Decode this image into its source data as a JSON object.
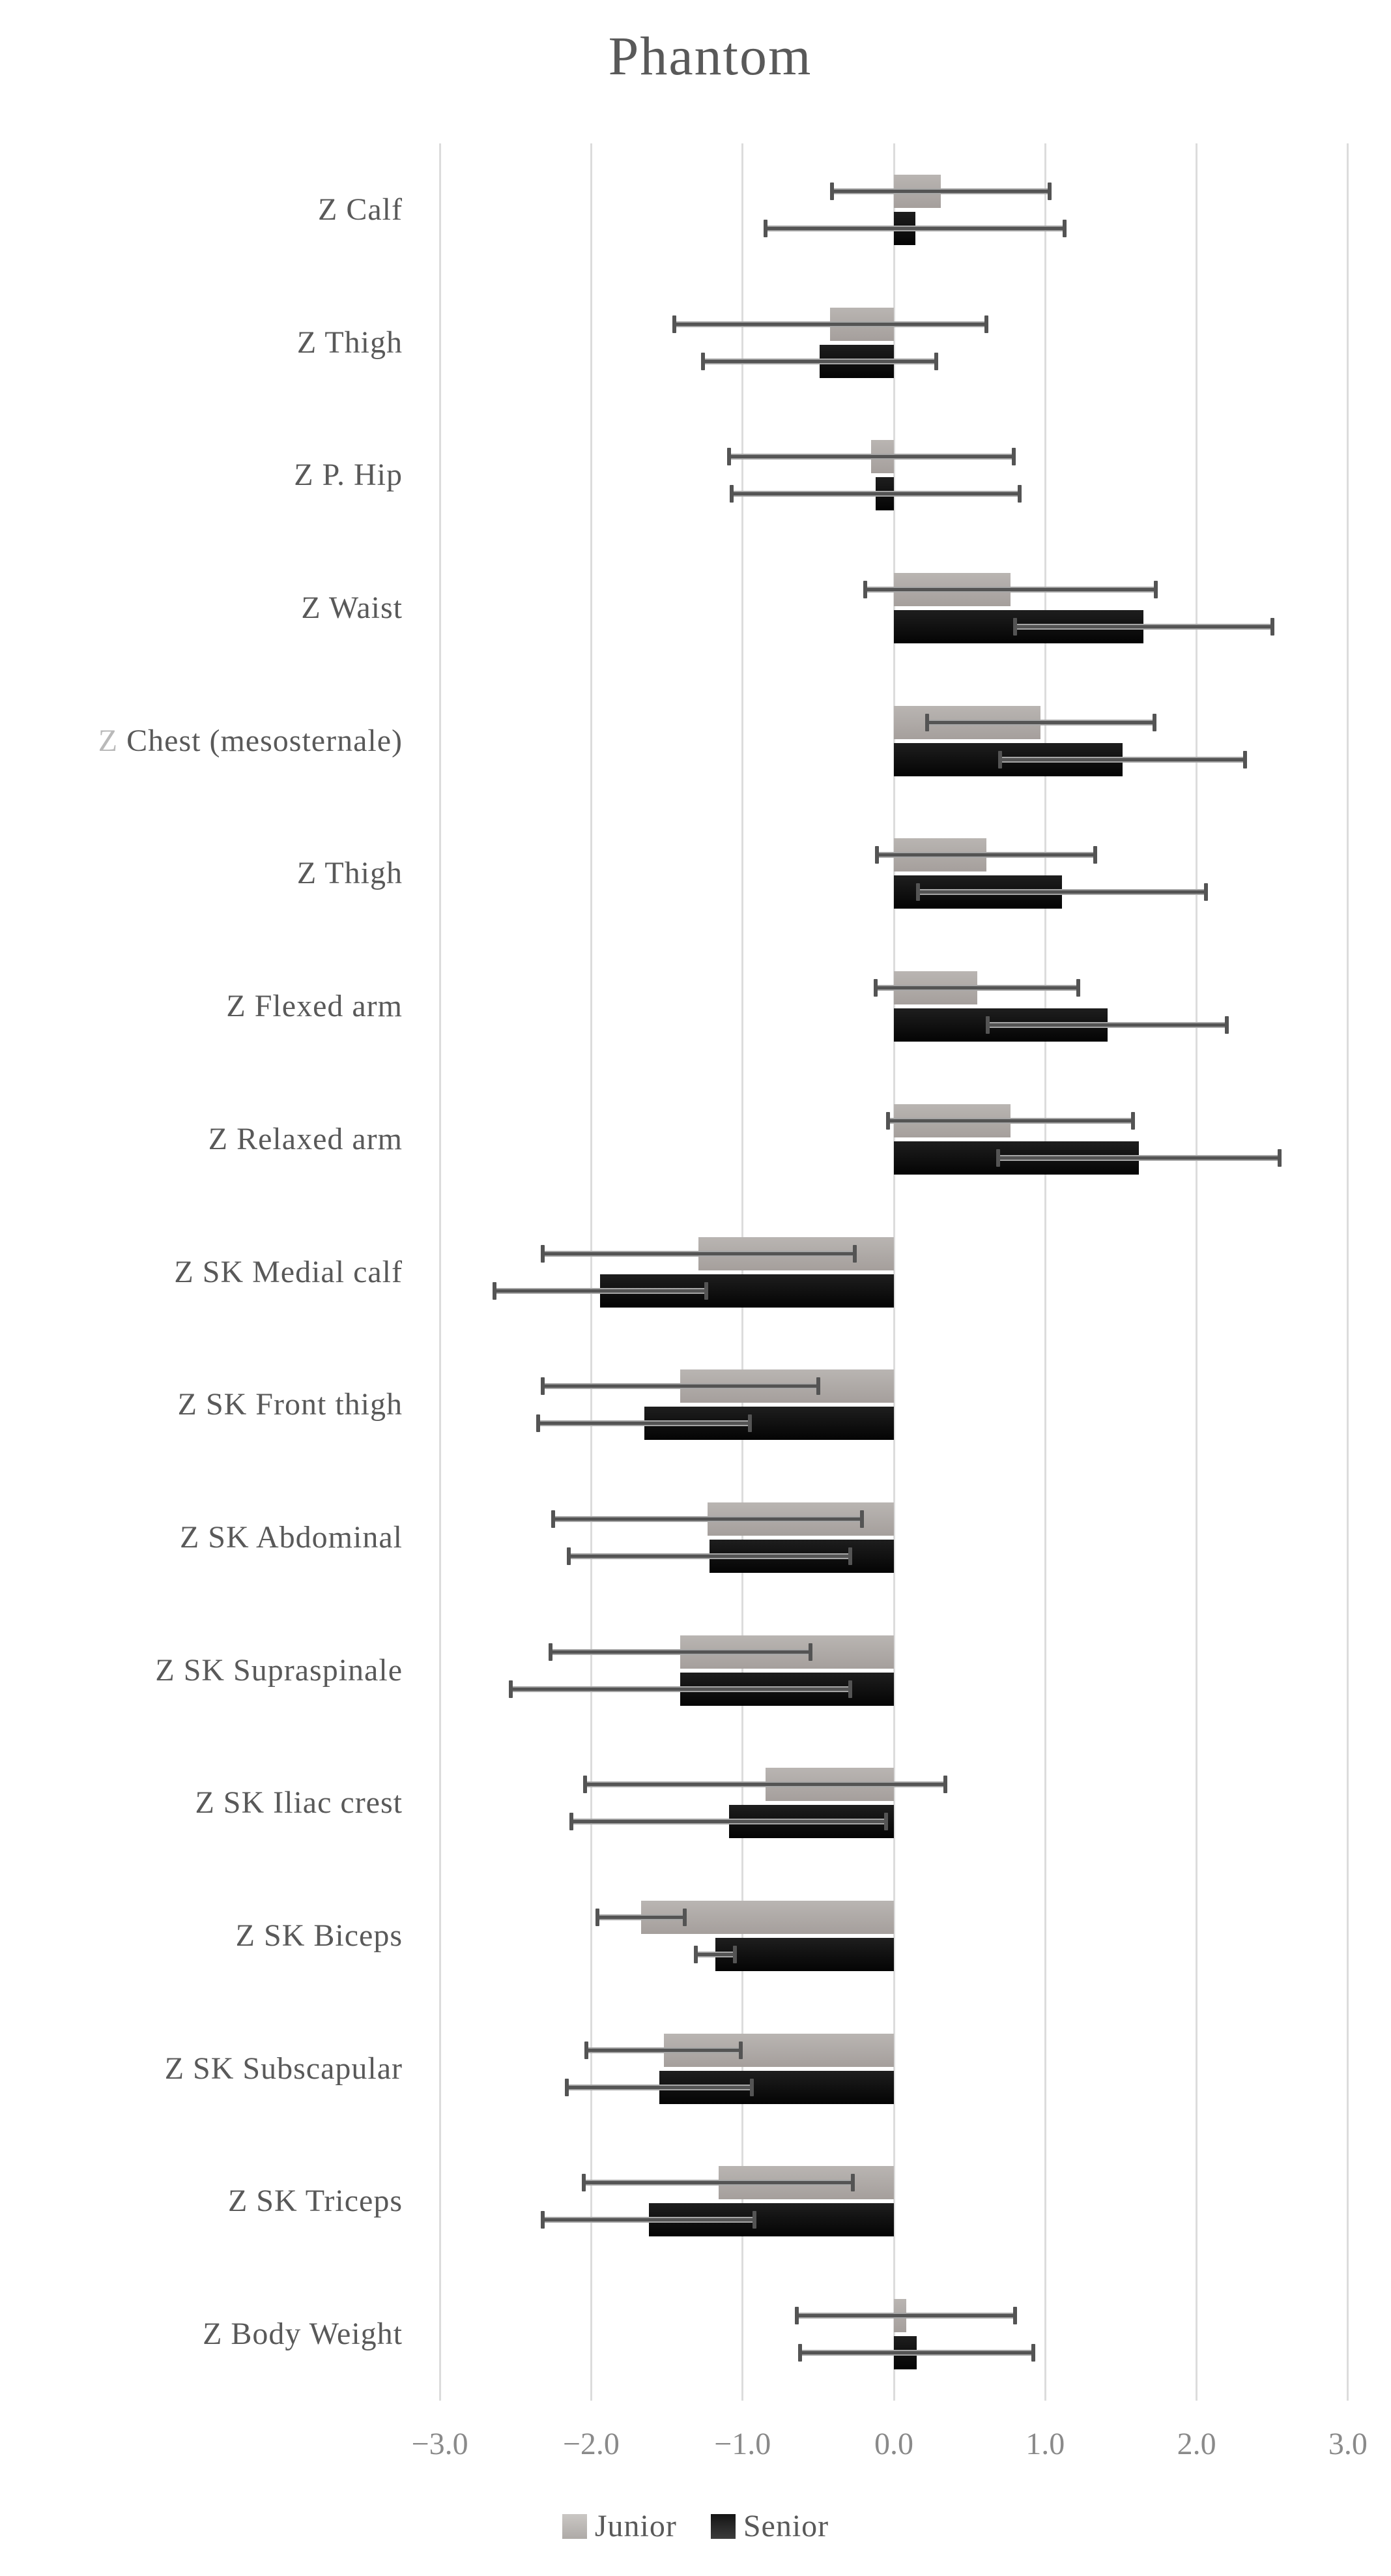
{
  "page": {
    "title": "Phantom"
  },
  "styles": {
    "background": "#ffffff",
    "title_color": "#595959",
    "category_label_color": "#595959",
    "tick_label_color": "#8a8a8a",
    "grid_color": "#dcdcdc",
    "error_bar_color": "#545454",
    "error_bar_halo_color": "#a6a6a6",
    "junior_color": "#aba7a4",
    "senior_color": "#0a0a0a",
    "light_z_index": 4,
    "light_z_color": "#b9b9b9"
  },
  "chart_data": {
    "type": "bar",
    "orientation": "horizontal",
    "title": "Phantom",
    "xlabel": "",
    "ylabel": "",
    "xlim": [
      -3.0,
      3.0
    ],
    "grid": "vertical-only",
    "legend_position": "bottom",
    "error_bars": true,
    "categories": [
      "Z Calf",
      "Z Thigh",
      "Z P. Hip",
      "Z Waist",
      "Z Chest (mesosternale)",
      "Z Thigh",
      "Z Flexed arm",
      "Z Relaxed arm",
      "Z SK Medial calf",
      "Z SK Front thigh",
      "Z SK Abdominal",
      "Z SK Supraspinale",
      "Z SK Iliac crest",
      "Z SK Biceps",
      "Z SK Subscapular",
      "Z SK Triceps",
      "Z Body Weight"
    ],
    "series": [
      {
        "name": "Junior",
        "color": "#aba7a4",
        "values": [
          0.31,
          -0.42,
          -0.15,
          0.77,
          0.97,
          0.61,
          0.55,
          0.77,
          -1.29,
          -1.41,
          -1.23,
          -1.41,
          -0.85,
          -1.67,
          -1.52,
          -1.16,
          0.08
        ],
        "errors": [
          0.72,
          1.03,
          0.94,
          0.96,
          0.75,
          0.72,
          0.67,
          0.81,
          1.03,
          0.91,
          1.02,
          0.86,
          1.19,
          0.29,
          0.51,
          0.89,
          0.72
        ]
      },
      {
        "name": "Senior",
        "color": "#0a0a0a",
        "values": [
          0.14,
          -0.49,
          -0.12,
          1.65,
          1.51,
          1.11,
          1.41,
          1.62,
          -1.94,
          -1.65,
          -1.22,
          -1.41,
          -1.09,
          -1.18,
          -1.55,
          -1.62,
          0.15
        ],
        "errors": [
          0.99,
          0.77,
          0.95,
          0.85,
          0.81,
          0.95,
          0.79,
          0.93,
          0.7,
          0.7,
          0.93,
          1.12,
          1.04,
          0.13,
          0.61,
          0.7,
          0.77
        ]
      }
    ],
    "x_ticks": [
      {
        "label": "−3.0",
        "value": -3
      },
      {
        "label": "−2.0",
        "value": -2
      },
      {
        "label": "−1.0",
        "value": -1
      },
      {
        "label": "0.0",
        "value": 0
      },
      {
        "label": "1.0",
        "value": 1
      },
      {
        "label": "2.0",
        "value": 2
      },
      {
        "label": "3.0",
        "value": 3
      }
    ]
  }
}
